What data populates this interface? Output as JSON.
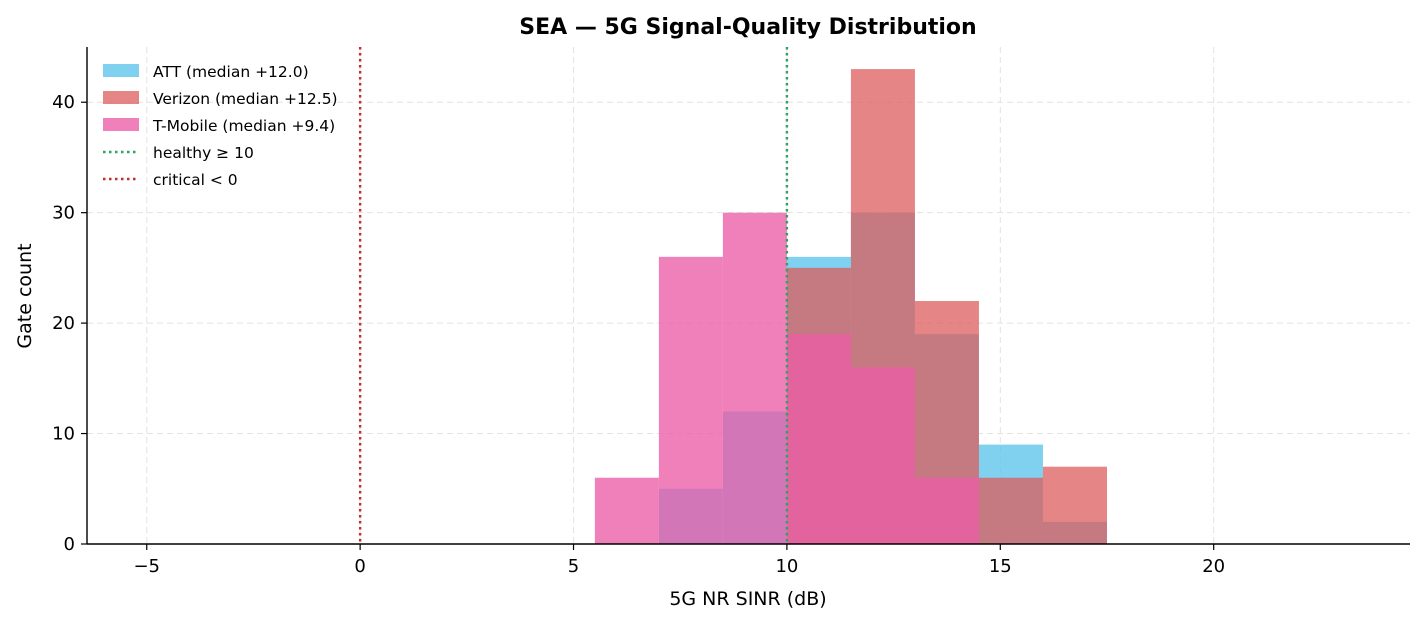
{
  "chart_data": {
    "type": "bar",
    "title": "SEA — 5G Signal-Quality Distribution",
    "xlabel": "5G NR SINR (dB)",
    "ylabel": "Gate count",
    "xlim": [
      -6.4,
      24.6
    ],
    "ylim": [
      0,
      45
    ],
    "x_ticks": [
      -5,
      0,
      5,
      10,
      15,
      20
    ],
    "x_tick_labels": [
      "−5",
      "0",
      "5",
      "10",
      "15",
      "20"
    ],
    "y_ticks": [
      0,
      10,
      20,
      30,
      40
    ],
    "y_tick_labels": [
      "0",
      "10",
      "20",
      "30",
      "40"
    ],
    "grid": true,
    "legend_position": "top-left",
    "bin_edges": [
      5.5,
      7.0,
      8.5,
      10.0,
      11.5,
      13.0,
      14.5,
      16.0,
      17.5
    ],
    "series": [
      {
        "name": "ATT (median +12.0)",
        "color": "#5bc4ea",
        "opacity": 0.78,
        "values": [
          0,
          5,
          12,
          26,
          30,
          19,
          9,
          2
        ]
      },
      {
        "name": "Verizon (median +12.5)",
        "color": "#dc5c5c",
        "opacity": 0.75,
        "values": [
          0,
          0,
          0,
          25,
          43,
          22,
          6,
          7
        ]
      },
      {
        "name": "T-Mobile (median +9.4)",
        "color": "#ea5ca6",
        "opacity": 0.78,
        "values": [
          6,
          26,
          30,
          19,
          16,
          6,
          0,
          0
        ]
      }
    ],
    "reference_lines": [
      {
        "label": "healthy ≥ 10",
        "x": 10,
        "color": "#2aa363",
        "style": "dotted"
      },
      {
        "label": "critical < 0",
        "x": 0,
        "color": "#c0302b",
        "style": "dotted"
      }
    ]
  }
}
